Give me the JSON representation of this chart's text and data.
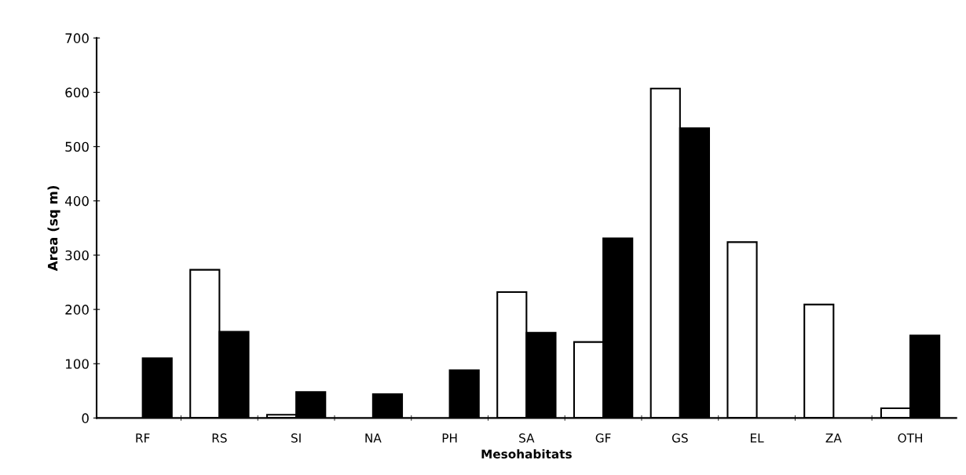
{
  "chart_data": {
    "type": "bar",
    "xlabel": "Mesohabitats",
    "ylabel": "Area (sq m)",
    "categories": [
      "RF",
      "RS",
      "SI",
      "NA",
      "PH",
      "SA",
      "GF",
      "GS",
      "EL",
      "ZA",
      "OTH"
    ],
    "series": [
      {
        "color": "#ffffff",
        "values": [
          null,
          273,
          6,
          null,
          null,
          232,
          140,
          607,
          324,
          209,
          18
        ]
      },
      {
        "color": "#000000",
        "values": [
          110,
          159,
          48,
          44,
          88,
          157,
          331,
          534,
          null,
          null,
          152
        ]
      }
    ],
    "ylim": [
      0,
      700
    ],
    "yticks": [
      0,
      100,
      200,
      300,
      400,
      500,
      600,
      700
    ],
    "grid": false,
    "legend": false
  }
}
